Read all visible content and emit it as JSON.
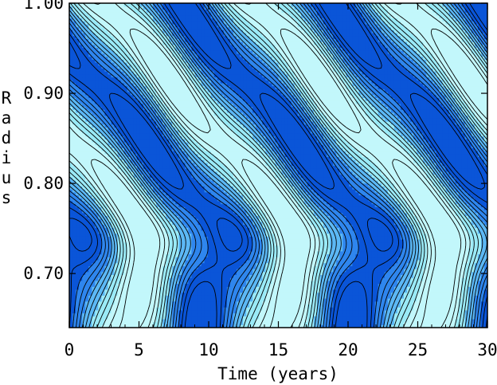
{
  "chart_data": {
    "type": "heatmap",
    "title": "",
    "xlabel": "Time (years)",
    "ylabel": "Radius",
    "xlim": [
      0,
      30
    ],
    "ylim": [
      0.64,
      1.0
    ],
    "x_ticks": [
      0,
      5,
      10,
      15,
      20,
      25,
      30
    ],
    "x_tick_labels": [
      "0",
      "5",
      "10",
      "15",
      "20",
      "25",
      "30"
    ],
    "y_ticks": [
      0.7,
      0.8,
      0.9,
      1.0
    ],
    "y_tick_labels": [
      "0.70",
      "0.80",
      "0.90",
      "1.00"
    ],
    "period_years": 10.8,
    "grid": false,
    "legend": "none",
    "fill_colors": [
      "#0a55d8",
      "#2f86ee",
      "#5cb8f5",
      "#9aeaf7",
      "#c2f7fb"
    ],
    "contour_color": "#000000"
  }
}
